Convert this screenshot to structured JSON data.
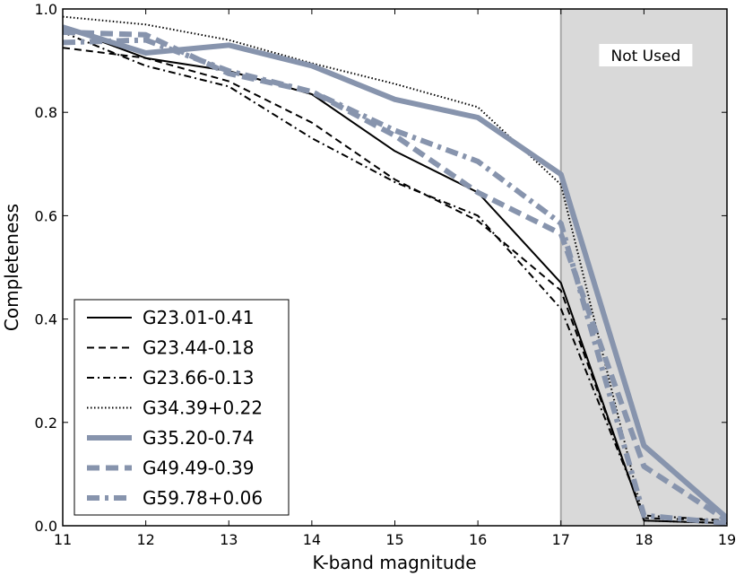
{
  "chart_data": {
    "type": "line",
    "title": "",
    "xlabel": "K-band magnitude",
    "ylabel": "Completeness",
    "xlim": [
      11,
      19
    ],
    "ylim": [
      0.0,
      1.0
    ],
    "xticks": [
      11,
      12,
      13,
      14,
      15,
      16,
      17,
      18,
      19
    ],
    "yticks": [
      0.0,
      0.2,
      0.4,
      0.6,
      0.8,
      1.0
    ],
    "xtick_labels": [
      "11",
      "12",
      "13",
      "14",
      "15",
      "16",
      "17",
      "18",
      "19"
    ],
    "ytick_labels": [
      "0.0",
      "0.2",
      "0.4",
      "0.6",
      "0.8",
      "1.0"
    ],
    "grid": false,
    "legend_position": "lower-left",
    "shaded_region": {
      "x_start": 17,
      "x_end": 19,
      "label": "Not Used",
      "color": "#d9d9d9"
    },
    "x": [
      11,
      12,
      13,
      14,
      15,
      16,
      17,
      18,
      19
    ],
    "series": [
      {
        "name": "G23.01-0.41",
        "style": "solid",
        "color": "#000000",
        "width": 2,
        "values": [
          0.965,
          0.905,
          0.88,
          0.835,
          0.725,
          0.645,
          0.47,
          0.01,
          0.005
        ]
      },
      {
        "name": "G23.44-0.18",
        "style": "dashed",
        "color": "#000000",
        "width": 2,
        "values": [
          0.925,
          0.905,
          0.86,
          0.78,
          0.67,
          0.59,
          0.455,
          0.015,
          0.01
        ]
      },
      {
        "name": "G23.66-0.13",
        "style": "dashdot",
        "color": "#000000",
        "width": 2,
        "values": [
          0.955,
          0.89,
          0.85,
          0.75,
          0.665,
          0.6,
          0.42,
          0.02,
          0.01
        ]
      },
      {
        "name": "G34.39+0.22",
        "style": "dotted",
        "color": "#000000",
        "width": 2,
        "values": [
          0.985,
          0.97,
          0.94,
          0.895,
          0.855,
          0.81,
          0.66,
          0.01,
          0.005
        ]
      },
      {
        "name": "G35.20-0.74",
        "style": "solid",
        "color": "#8794ad",
        "width": 6,
        "values": [
          0.965,
          0.915,
          0.93,
          0.89,
          0.825,
          0.79,
          0.68,
          0.155,
          0.015
        ]
      },
      {
        "name": "G49.49-0.39",
        "style": "dashed",
        "color": "#8794ad",
        "width": 6,
        "values": [
          0.955,
          0.95,
          0.875,
          0.84,
          0.755,
          0.645,
          0.565,
          0.115,
          0.01
        ]
      },
      {
        "name": "G59.78+0.06",
        "style": "dashdot",
        "color": "#8794ad",
        "width": 6,
        "values": [
          0.935,
          0.94,
          0.88,
          0.84,
          0.765,
          0.705,
          0.585,
          0.02,
          0.005
        ]
      }
    ]
  }
}
